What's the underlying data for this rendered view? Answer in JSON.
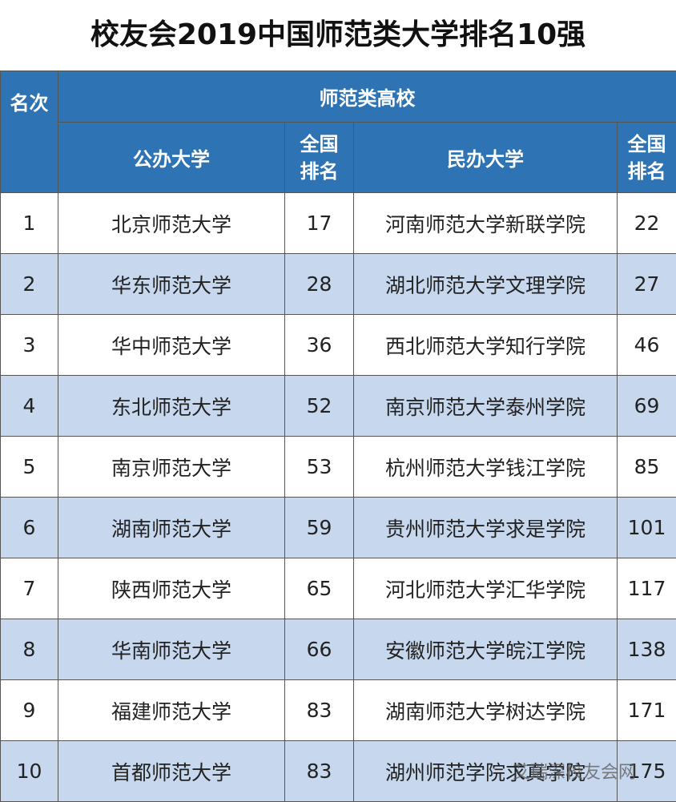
{
  "title": "校友会2019中国师范类大学排名10强",
  "table": {
    "header": {
      "rank": "名次",
      "group": "师范类高校",
      "public": "公办大学",
      "public_rank": "全国排名",
      "private": "民办大学",
      "private_rank": "全国排名"
    },
    "rows": [
      [
        1,
        "北京师范大学",
        17,
        "河南师范大学新联学院",
        22
      ],
      [
        2,
        "华东师范大学",
        28,
        "湖北师范大学文理学院",
        27
      ],
      [
        3,
        "华中师范大学",
        36,
        "西北师范大学知行学院",
        46
      ],
      [
        4,
        "东北师范大学",
        52,
        "南京师范大学泰州学院",
        69
      ],
      [
        5,
        "南京师范大学",
        53,
        "杭州师范大学钱江学院",
        85
      ],
      [
        6,
        "湖南师范大学",
        59,
        "贵州师范大学求是学院",
        101
      ],
      [
        7,
        "陕西师范大学",
        65,
        "河北师范大学汇华学院",
        117
      ],
      [
        8,
        "华南师范大学",
        66,
        "安徽师范大学皖江学院",
        138
      ],
      [
        9,
        "福建师范大学",
        83,
        "湖南师范大学树达学院",
        171
      ],
      [
        10,
        "首都师范大学",
        83,
        "湖州师范学院求真学院",
        175
      ]
    ]
  },
  "watermark": "艾瑞深校友会网"
}
